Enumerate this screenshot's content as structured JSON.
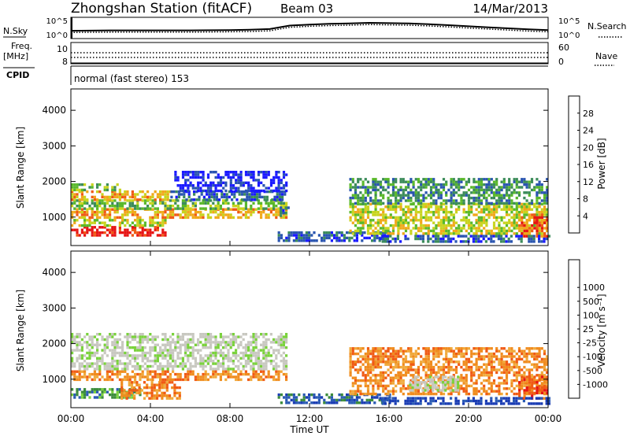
{
  "header": {
    "station": "Zhongshan Station (fitACF)",
    "beam": "Beam 03",
    "date": "14/Mar/2013"
  },
  "left_labels": {
    "nsky": "N.Sky",
    "freq": "Freq.",
    "freq_unit": "[MHz]",
    "cpid": "CPID"
  },
  "right_labels": {
    "nsearch": "N.Search",
    "nave": "Nave"
  },
  "cpid_text": "normal (fast stereo) 153",
  "colors": {
    "power": [
      "#1a1aff",
      "#2a55b0",
      "#3c8c5a",
      "#59b82a",
      "#c8d41e",
      "#f0a81a",
      "#f05a14",
      "#e61414"
    ],
    "velocity": [
      "#e61414",
      "#f05a14",
      "#f08c1e",
      "#f0aa3c",
      "#c8c8c0",
      "#c8c8c0",
      "#7ad23c",
      "#3c8c3c",
      "#2a5ab4",
      "#1a3cb4"
    ],
    "grey_scatter": "#c4c4bc"
  },
  "chart_data": [
    {
      "type": "line",
      "title": "N.Sky / N.Search",
      "ylim_log_exponents": [
        0,
        5
      ],
      "yticks_left": [
        "10^5",
        "10^0"
      ],
      "yticks_right": [
        "10^5",
        "10^0"
      ],
      "series": [
        {
          "name": "N.Sky",
          "style": "solid",
          "x_hours": [
            0,
            2,
            4,
            6,
            8,
            9,
            10,
            11,
            12,
            13,
            14,
            15,
            16,
            17,
            18,
            19,
            20,
            21,
            22,
            23,
            24
          ],
          "log_values": [
            1.8,
            1.9,
            1.9,
            1.9,
            2.0,
            2.1,
            2.3,
            3.3,
            3.6,
            3.8,
            3.9,
            4.1,
            4.0,
            3.9,
            3.7,
            3.4,
            3.1,
            2.8,
            2.5,
            2.2,
            2.0
          ]
        },
        {
          "name": "N.Search",
          "style": "dotted",
          "x_hours": [
            0,
            2,
            4,
            6,
            8,
            9,
            10,
            11,
            12,
            13,
            14,
            15,
            16,
            17,
            18,
            19,
            20,
            21,
            22,
            23,
            24
          ],
          "log_values": [
            1.3,
            1.4,
            1.4,
            1.4,
            1.5,
            1.6,
            1.8,
            2.8,
            3.1,
            3.3,
            3.4,
            3.6,
            3.5,
            3.4,
            3.2,
            2.9,
            2.6,
            2.3,
            2.0,
            1.7,
            1.5
          ]
        }
      ]
    },
    {
      "type": "line",
      "title": "Freq / Nave",
      "yticks_left": [
        "10",
        "8"
      ],
      "yticks_right": [
        "60",
        "0"
      ],
      "series": [
        {
          "name": "Freq",
          "style": "dotted",
          "x_hours": [
            0,
            24
          ],
          "values": [
            10.2,
            10.2
          ]
        },
        {
          "name": "Nave",
          "style": "dotted",
          "x_hours": [
            0,
            24
          ],
          "values": [
            22,
            22
          ]
        }
      ]
    },
    {
      "type": "heatmap",
      "title": "Power",
      "ylabel": "Slant Range [km]",
      "yticks": [
        "1000",
        "2000",
        "3000",
        "4000"
      ],
      "ylim": [
        200,
        4600
      ],
      "xlim_hours": [
        0,
        24
      ],
      "colorbar_label": "Power [dB]",
      "colorbar_ticks": [
        "4",
        "8",
        "12",
        "16",
        "20",
        "24",
        "28"
      ],
      "bands": [
        {
          "x0": 0.0,
          "x1": 4.7,
          "r0": 450,
          "r1": 750,
          "level": 7
        },
        {
          "x0": 0.0,
          "x1": 4.7,
          "r0": 750,
          "r1": 950,
          "level": 4
        },
        {
          "x0": 0.0,
          "x1": 10.8,
          "r0": 950,
          "r1": 1250,
          "level": 5
        },
        {
          "x0": 0.0,
          "x1": 10.8,
          "r0": 1250,
          "r1": 1500,
          "level": 3
        },
        {
          "x0": 0.0,
          "x1": 5.0,
          "r0": 1500,
          "r1": 1750,
          "level": 5
        },
        {
          "x0": 5.0,
          "x1": 10.8,
          "r0": 1500,
          "r1": 1750,
          "level": 1
        },
        {
          "x0": 5.2,
          "x1": 10.8,
          "r0": 1750,
          "r1": 2300,
          "level": 0
        },
        {
          "x0": 0.0,
          "x1": 2.5,
          "r0": 1750,
          "r1": 1950,
          "level": 3
        },
        {
          "x0": 10.5,
          "x1": 11.0,
          "r0": 1000,
          "r1": 1300,
          "level": 1
        },
        {
          "x0": 10.4,
          "x1": 16.0,
          "r0": 350,
          "r1": 600,
          "level": 1
        },
        {
          "x0": 14.0,
          "x1": 24.0,
          "r0": 550,
          "r1": 1400,
          "level": 4
        },
        {
          "x0": 14.0,
          "x1": 24.0,
          "r0": 1400,
          "r1": 2100,
          "level": 2
        },
        {
          "x0": 22.5,
          "x1": 24.0,
          "r0": 450,
          "r1": 1100,
          "level": 6
        },
        {
          "x0": 15.5,
          "x1": 24.0,
          "r0": 300,
          "r1": 500,
          "level": 1
        }
      ]
    },
    {
      "type": "heatmap",
      "title": "Velocity",
      "ylabel": "Slant Range [km]",
      "xlabel": "Time UT",
      "xticks": [
        "00:00",
        "04:00",
        "08:00",
        "12:00",
        "16:00",
        "20:00",
        "00:00"
      ],
      "yticks": [
        "1000",
        "2000",
        "3000",
        "4000"
      ],
      "ylim": [
        200,
        4600
      ],
      "xlim_hours": [
        0,
        24
      ],
      "colorbar_label": "Velocity  [m s⁻¹]",
      "colorbar_ticks": [
        "-1000",
        "-500",
        "-100",
        "-25",
        "25",
        "100",
        "500",
        "1000"
      ],
      "bands": [
        {
          "x0": 0.0,
          "x1": 3.5,
          "r0": 450,
          "r1": 750,
          "level": 7
        },
        {
          "x0": 2.5,
          "x1": 5.5,
          "r0": 450,
          "r1": 950,
          "level": 2
        },
        {
          "x0": 0.0,
          "x1": 10.8,
          "r0": 950,
          "r1": 1250,
          "level": 2
        },
        {
          "x0": 0.0,
          "x1": 10.8,
          "r0": 1250,
          "r1": 2300,
          "level": 5
        },
        {
          "x0": 10.4,
          "x1": 16.0,
          "r0": 350,
          "r1": 600,
          "level": 8
        },
        {
          "x0": 14.0,
          "x1": 24.0,
          "r0": 600,
          "r1": 1900,
          "level": 2
        },
        {
          "x0": 17.0,
          "x1": 19.5,
          "r0": 700,
          "r1": 1100,
          "level": 5
        },
        {
          "x0": 22.5,
          "x1": 24.0,
          "r0": 450,
          "r1": 1100,
          "level": 1
        },
        {
          "x0": 15.5,
          "x1": 24.0,
          "r0": 300,
          "r1": 500,
          "level": 9
        }
      ]
    }
  ]
}
